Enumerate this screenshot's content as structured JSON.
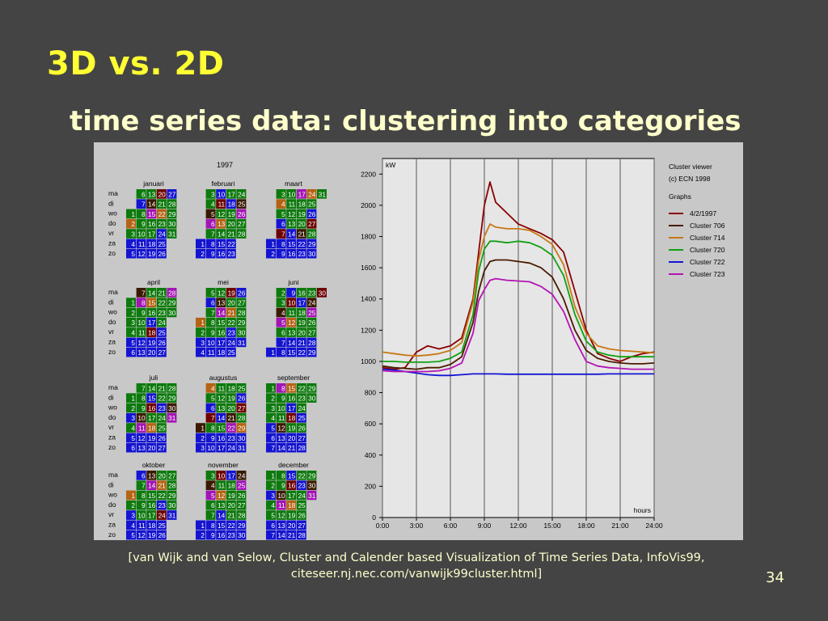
{
  "slide": {
    "title": "3D vs. 2D",
    "subtitle": "time series data: clustering into categories",
    "citation_line1": "[van Wijk and van Selow, Cluster and Calender based Visualization of Time Series Data, InfoVis99,",
    "citation_line2": "citeseer.nj.nec.com/vanwijk99cluster.html]",
    "page_number": "34"
  },
  "calendar": {
    "year": "1997",
    "day_labels": [
      "ma",
      "di",
      "wo",
      "do",
      "vr",
      "za",
      "zo"
    ],
    "months": [
      "januari",
      "februari",
      "maart",
      "april",
      "mei",
      "juni",
      "juli",
      "augustus",
      "september",
      "oktober",
      "november",
      "december"
    ]
  },
  "chart_data": {
    "type": "line",
    "title": "",
    "xlabel": "hours",
    "ylabel": "kW",
    "xlim": [
      0,
      24
    ],
    "ylim": [
      0,
      2300
    ],
    "x_ticks": [
      "0:00",
      "3:00",
      "6:00",
      "9:00",
      "12:00",
      "15:00",
      "18:00",
      "21:00",
      "24:00"
    ],
    "y_ticks": [
      0,
      200,
      400,
      600,
      800,
      1000,
      1200,
      1400,
      1600,
      1800,
      2000,
      2200
    ],
    "grid": true,
    "legend": {
      "header1": "Cluster viewer",
      "header2": "(c) ECN 1998",
      "header3": "Graphs",
      "position": "right"
    },
    "x": [
      0,
      1,
      2,
      3,
      4,
      5,
      6,
      7,
      8,
      8.5,
      9,
      9.5,
      10,
      11,
      12,
      13,
      14,
      15,
      16,
      17,
      18,
      19,
      20,
      21,
      22,
      23,
      24
    ],
    "series": [
      {
        "name": "4/2/1997",
        "color": "#8b0000",
        "values": [
          960,
          950,
          960,
          1060,
          1100,
          1080,
          1100,
          1150,
          1400,
          1700,
          2000,
          2150,
          2020,
          1950,
          1880,
          1850,
          1820,
          1780,
          1700,
          1450,
          1200,
          1050,
          1020,
          1000,
          1030,
          1050,
          1060
        ]
      },
      {
        "name": "Cluster 706",
        "color": "#4a1c00",
        "values": [
          970,
          960,
          955,
          950,
          960,
          960,
          980,
          1030,
          1250,
          1450,
          1580,
          1640,
          1650,
          1650,
          1640,
          1630,
          1600,
          1540,
          1400,
          1200,
          1070,
          1020,
          1000,
          990,
          985,
          985,
          990
        ]
      },
      {
        "name": "Cluster 714",
        "color": "#c87814",
        "values": [
          1060,
          1050,
          1040,
          1035,
          1040,
          1050,
          1070,
          1120,
          1380,
          1650,
          1800,
          1880,
          1860,
          1850,
          1850,
          1840,
          1800,
          1750,
          1620,
          1350,
          1180,
          1100,
          1080,
          1070,
          1065,
          1060,
          1055
        ]
      },
      {
        "name": "Cluster 720",
        "color": "#12a012",
        "values": [
          1000,
          1000,
          995,
          995,
          995,
          1000,
          1020,
          1060,
          1300,
          1580,
          1720,
          1770,
          1770,
          1760,
          1770,
          1760,
          1730,
          1680,
          1550,
          1300,
          1130,
          1060,
          1040,
          1030,
          1030,
          1030,
          1030
        ]
      },
      {
        "name": "Cluster 722",
        "color": "#1414d2",
        "values": [
          950,
          945,
          935,
          925,
          915,
          910,
          910,
          915,
          920,
          920,
          920,
          920,
          920,
          918,
          918,
          918,
          918,
          918,
          918,
          918,
          918,
          918,
          920,
          920,
          920,
          920,
          920
        ]
      },
      {
        "name": "Cluster 723",
        "color": "#b414b4",
        "values": [
          940,
          935,
          935,
          935,
          935,
          940,
          955,
          990,
          1180,
          1390,
          1460,
          1520,
          1530,
          1520,
          1515,
          1510,
          1480,
          1430,
          1320,
          1140,
          1000,
          970,
          960,
          955,
          950,
          950,
          950
        ]
      }
    ]
  }
}
